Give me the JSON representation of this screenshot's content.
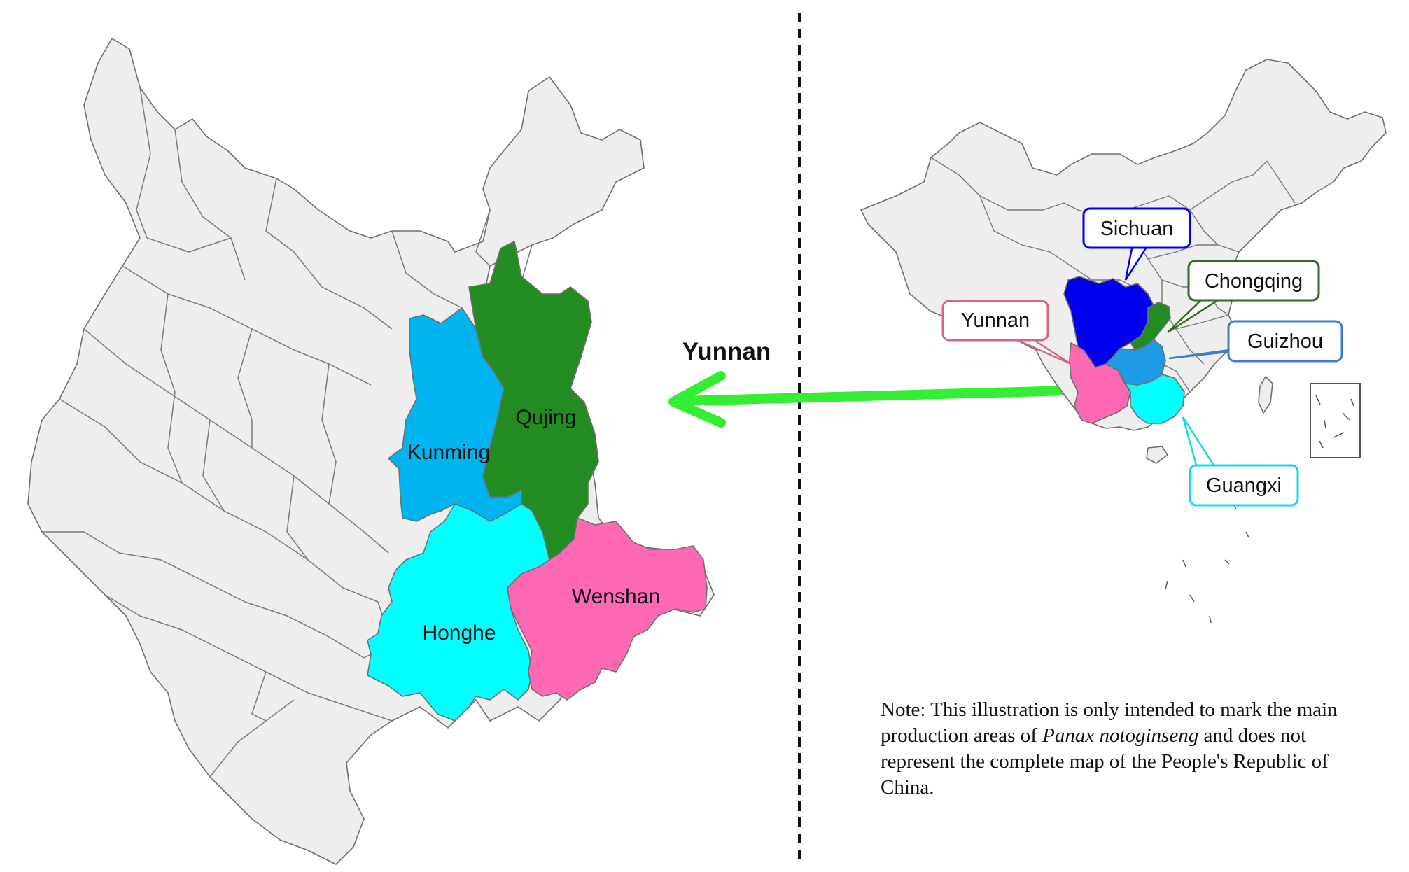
{
  "yunnan_map": {
    "title": "Yunnan",
    "prefectures": [
      {
        "id": "kunming",
        "label": "Kunming",
        "color": "#00b4f0"
      },
      {
        "id": "qujing",
        "label": "Qujing",
        "color": "#228b22"
      },
      {
        "id": "honghe",
        "label": "Honghe",
        "color": "#00ffff"
      },
      {
        "id": "wenshan",
        "label": "Wenshan",
        "color": "#ff69b4"
      }
    ],
    "other_region_color": "#eeeeee"
  },
  "china_map": {
    "provinces": [
      {
        "id": "sichuan",
        "label": "Sichuan",
        "color": "#0000ee"
      },
      {
        "id": "chongqing",
        "label": "Chongqing",
        "color": "#228b22"
      },
      {
        "id": "yunnan",
        "label": "Yunnan",
        "color": "#ff69b4"
      },
      {
        "id": "guizhou",
        "label": "Guizhou",
        "color": "#1e9be6"
      },
      {
        "id": "guangxi",
        "label": "Guangxi",
        "color": "#00ffff"
      }
    ]
  },
  "arrow_color": "#33ee33",
  "note": {
    "prefix": "Note: This illustration is only intended to mark the main production areas of ",
    "species": "Panax notoginseng",
    "suffix": " and does not represent the complete map of the People's Republic of China."
  }
}
